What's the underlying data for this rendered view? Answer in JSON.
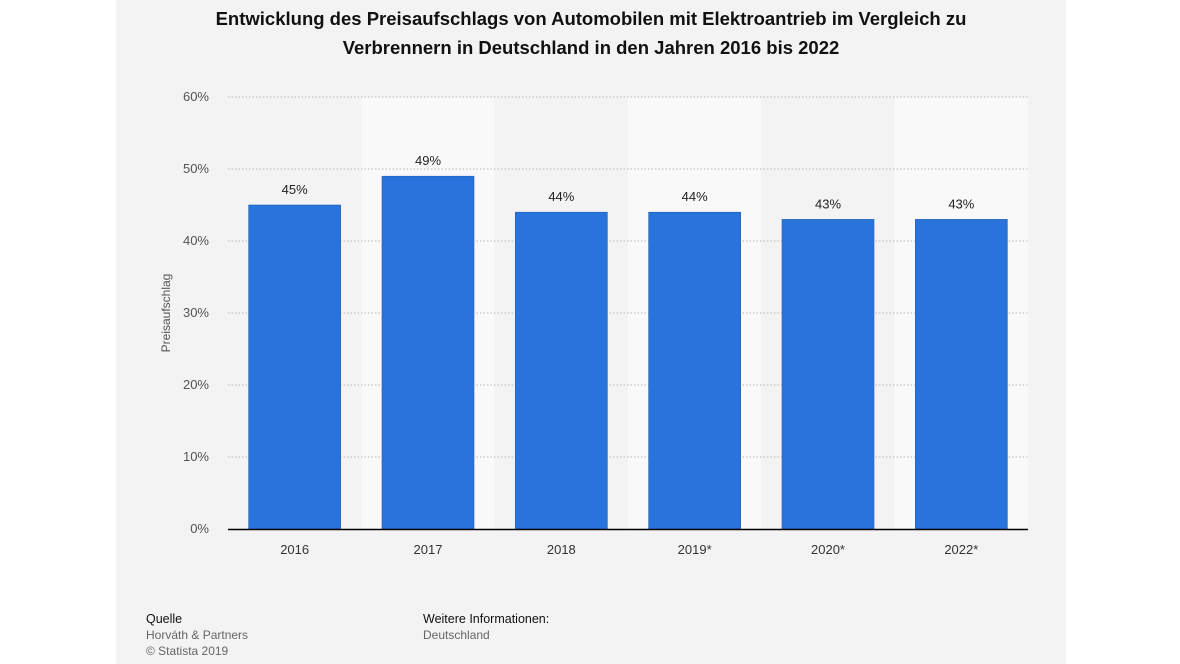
{
  "chart_data": {
    "type": "bar",
    "title_lines": [
      "Entwicklung des Preisaufschlags von Automobilen mit Elektroantrieb im Vergleich zu",
      "Verbrennern in Deutschland in den Jahren 2016 bis 2022"
    ],
    "categories": [
      "2016",
      "2017",
      "2018",
      "2019*",
      "2020*",
      "2022*"
    ],
    "values": [
      45,
      49,
      44,
      44,
      43,
      43
    ],
    "value_labels": [
      "45%",
      "49%",
      "44%",
      "44%",
      "43%",
      "43%"
    ],
    "ylabel": "Preisaufschlag",
    "ylim": [
      0,
      60
    ],
    "yticks": [
      0,
      10,
      20,
      30,
      40,
      50,
      60
    ],
    "ytick_labels": [
      "0%",
      "10%",
      "20%",
      "30%",
      "40%",
      "50%",
      "60%"
    ],
    "grid": true,
    "bar_color": "#2874dc"
  },
  "footer": {
    "source_heading": "Quelle",
    "source_name": "Horváth & Partners",
    "copyright": "© Statista 2019",
    "info_heading": "Weitere Informationen:",
    "info_region": "Deutschland"
  }
}
